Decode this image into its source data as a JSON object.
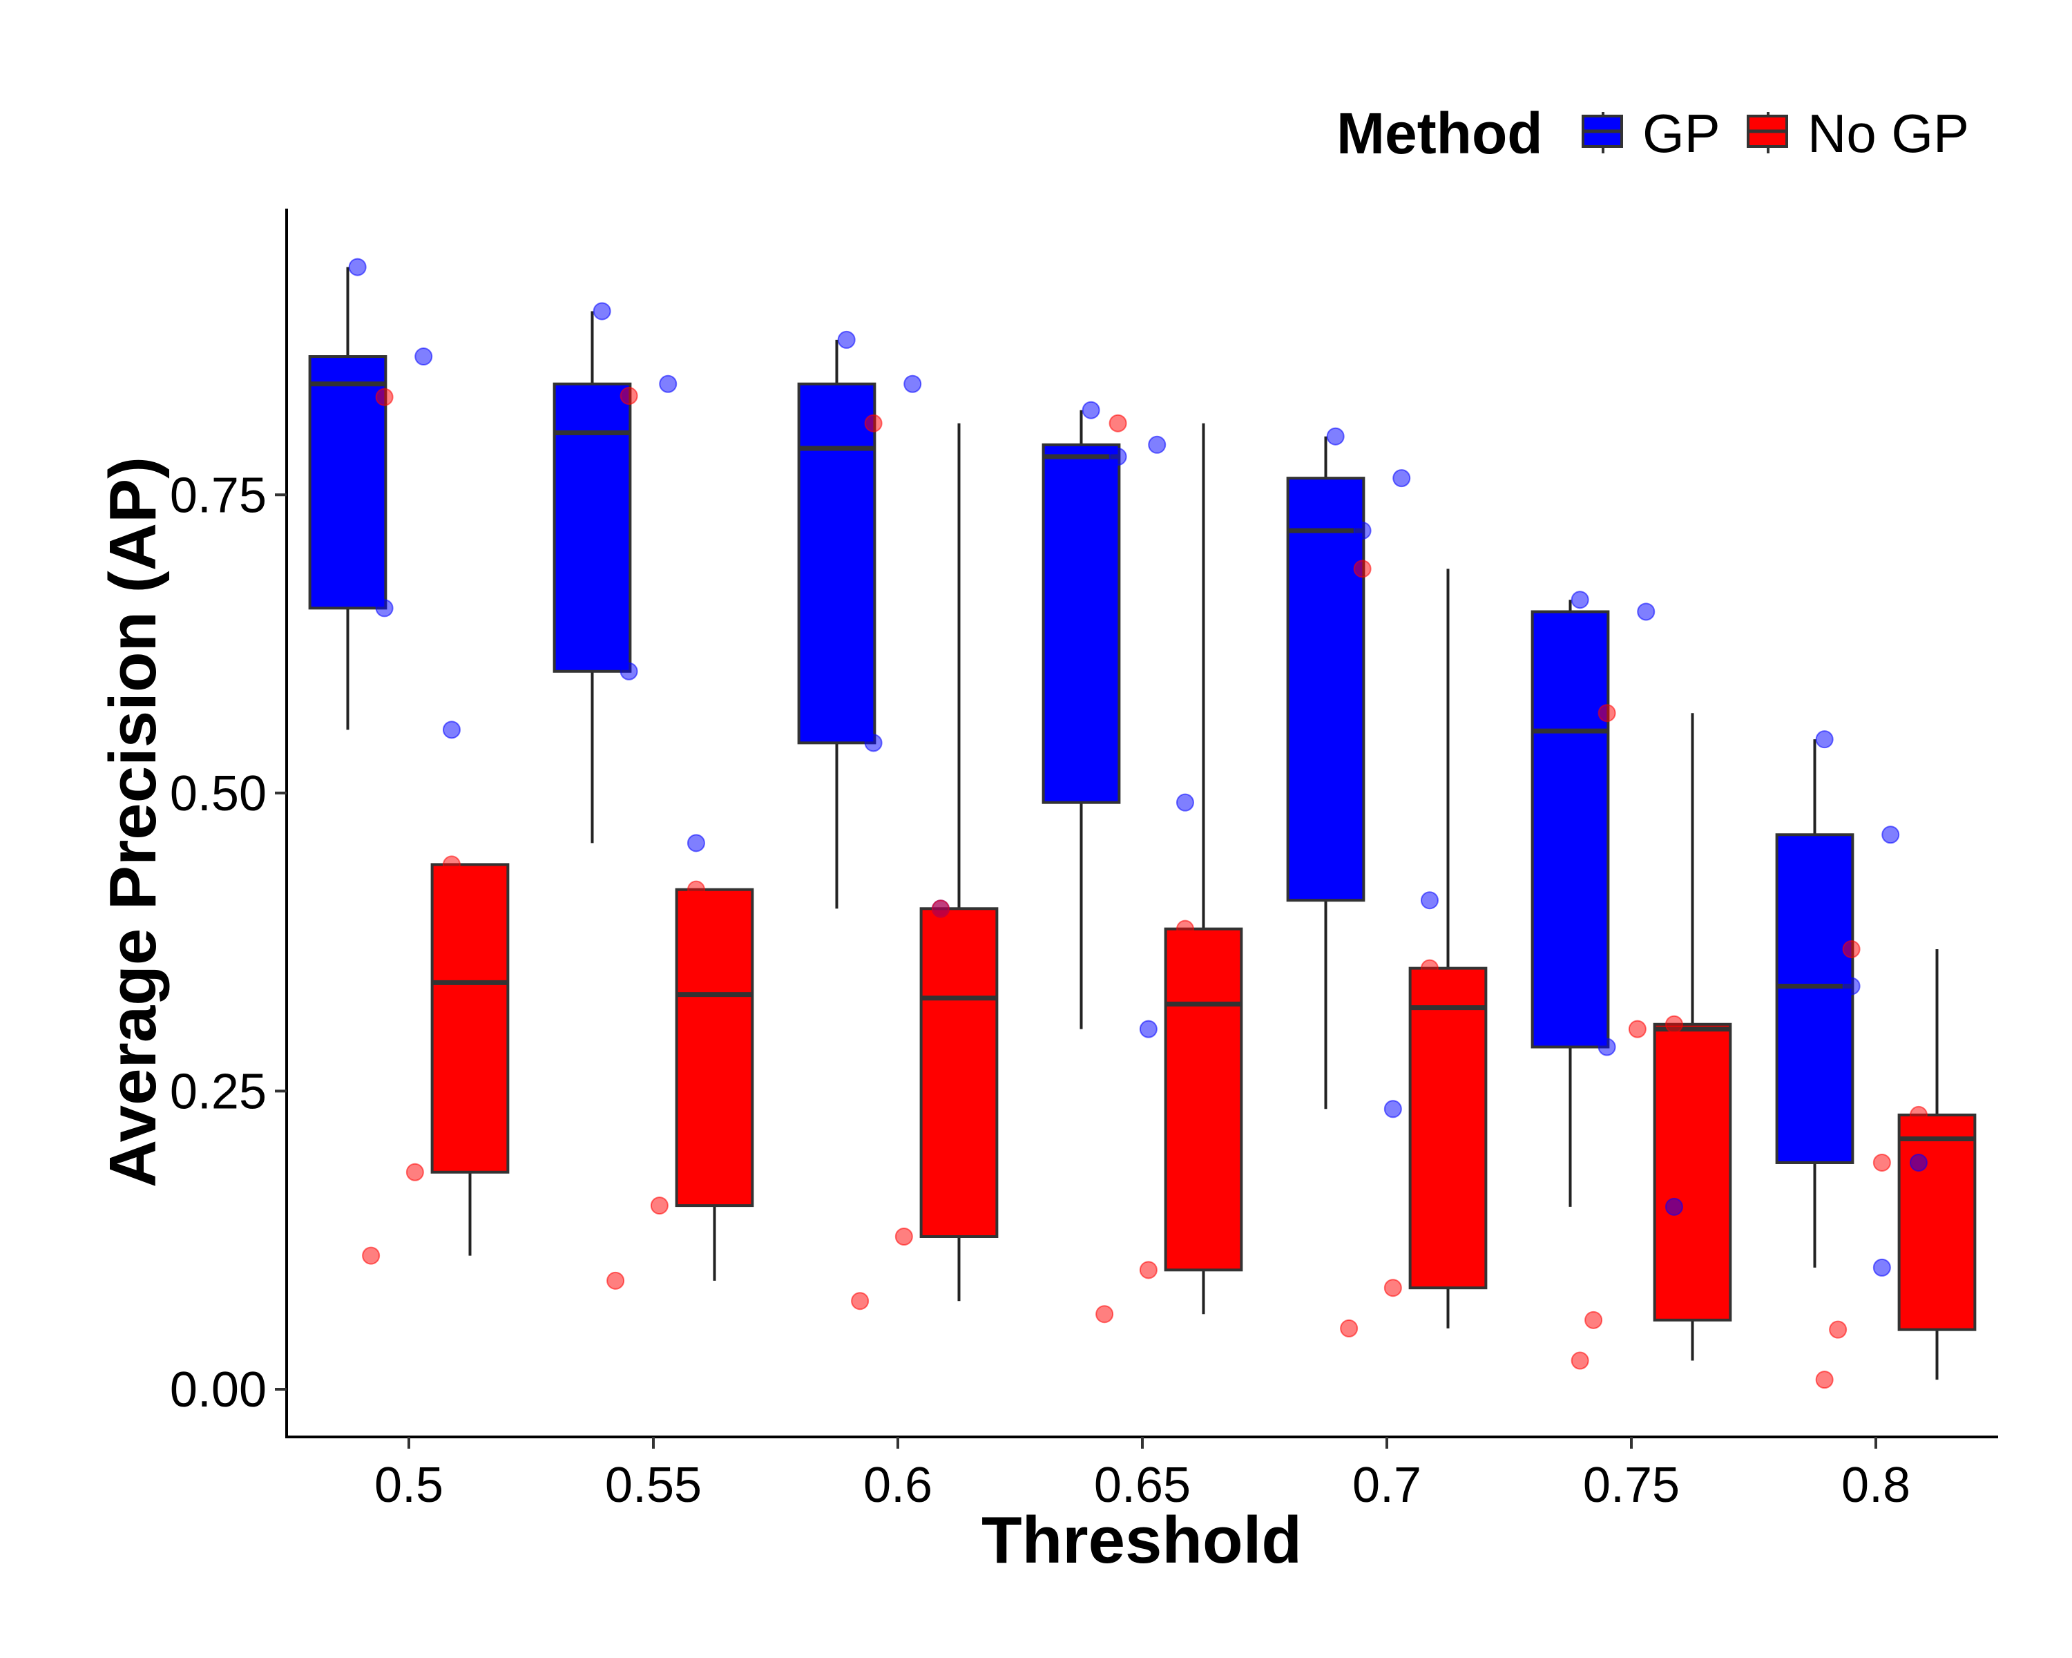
{
  "colors": {
    "GP": "#0000ff",
    "No GP": "#ff0000",
    "line": "#333333",
    "axis": "#000000"
  },
  "legend": {
    "title": "Method",
    "position": "top-right",
    "items": [
      "GP",
      "No GP"
    ]
  },
  "chart_data": {
    "type": "box",
    "title": "",
    "xlabel": "Threshold",
    "ylabel": "Average Precision (AP)",
    "categories": [
      "0.5",
      "0.55",
      "0.6",
      "0.65",
      "0.7",
      "0.75",
      "0.8"
    ],
    "yticks": [
      "0.00",
      "0.25",
      "0.50",
      "0.75"
    ],
    "ylim": [
      -0.04,
      0.99
    ],
    "grid": false,
    "series": [
      {
        "name": "GP",
        "boxes": [
          {
            "low": 0.553,
            "q1": 0.655,
            "median": 0.843,
            "q3": 0.866,
            "high": 0.941
          },
          {
            "low": 0.458,
            "q1": 0.602,
            "median": 0.802,
            "q3": 0.843,
            "high": 0.904
          },
          {
            "low": 0.403,
            "q1": 0.542,
            "median": 0.789,
            "q3": 0.843,
            "high": 0.88
          },
          {
            "low": 0.302,
            "q1": 0.492,
            "median": 0.782,
            "q3": 0.792,
            "high": 0.821
          },
          {
            "low": 0.235,
            "q1": 0.41,
            "median": 0.72,
            "q3": 0.764,
            "high": 0.799
          },
          {
            "low": 0.153,
            "q1": 0.287,
            "median": 0.552,
            "q3": 0.652,
            "high": 0.662
          },
          {
            "low": 0.102,
            "q1": 0.19,
            "median": 0.338,
            "q3": 0.465,
            "high": 0.545
          }
        ],
        "points": [
          {
            "x": "0.5",
            "values": [
              0.941,
              0.866,
              0.655,
              0.553
            ]
          },
          {
            "x": "0.55",
            "values": [
              0.904,
              0.843,
              0.602,
              0.458
            ]
          },
          {
            "x": "0.6",
            "values": [
              0.88,
              0.843,
              0.542,
              0.403
            ]
          },
          {
            "x": "0.65",
            "values": [
              0.821,
              0.792,
              0.782,
              0.492,
              0.302
            ]
          },
          {
            "x": "0.7",
            "values": [
              0.799,
              0.764,
              0.72,
              0.41,
              0.235
            ]
          },
          {
            "x": "0.75",
            "values": [
              0.662,
              0.652,
              0.287,
              0.153
            ]
          },
          {
            "x": "0.8",
            "values": [
              0.545,
              0.465,
              0.338,
              0.19,
              0.102
            ]
          }
        ]
      },
      {
        "name": "No GP",
        "boxes": [
          {
            "low": 0.112,
            "q1": 0.182,
            "median": 0.341,
            "q3": 0.44,
            "high": 0.44
          },
          {
            "low": 0.091,
            "q1": 0.154,
            "median": 0.331,
            "q3": 0.419,
            "high": 0.419
          },
          {
            "low": 0.074,
            "q1": 0.128,
            "median": 0.328,
            "q3": 0.403,
            "high": 0.81
          },
          {
            "low": 0.063,
            "q1": 0.1,
            "median": 0.323,
            "q3": 0.386,
            "high": 0.81
          },
          {
            "low": 0.051,
            "q1": 0.085,
            "median": 0.32,
            "q3": 0.353,
            "high": 0.688
          },
          {
            "low": 0.024,
            "q1": 0.058,
            "median": 0.302,
            "q3": 0.306,
            "high": 0.567
          },
          {
            "low": 0.008,
            "q1": 0.05,
            "median": 0.21,
            "q3": 0.23,
            "high": 0.369
          }
        ],
        "points": [
          {
            "x": "0.5",
            "values": [
              0.832,
              0.44,
              0.182,
              0.112
            ]
          },
          {
            "x": "0.55",
            "values": [
              0.833,
              0.419,
              0.154,
              0.091
            ]
          },
          {
            "x": "0.6",
            "values": [
              0.81,
              0.403,
              0.128,
              0.074
            ]
          },
          {
            "x": "0.65",
            "values": [
              0.81,
              0.386,
              0.1,
              0.063
            ]
          },
          {
            "x": "0.7",
            "values": [
              0.688,
              0.353,
              0.085,
              0.051
            ]
          },
          {
            "x": "0.75",
            "values": [
              0.567,
              0.306,
              0.302,
              0.058,
              0.024
            ]
          },
          {
            "x": "0.8",
            "values": [
              0.369,
              0.23,
              0.19,
              0.05,
              0.008
            ]
          }
        ]
      }
    ]
  }
}
